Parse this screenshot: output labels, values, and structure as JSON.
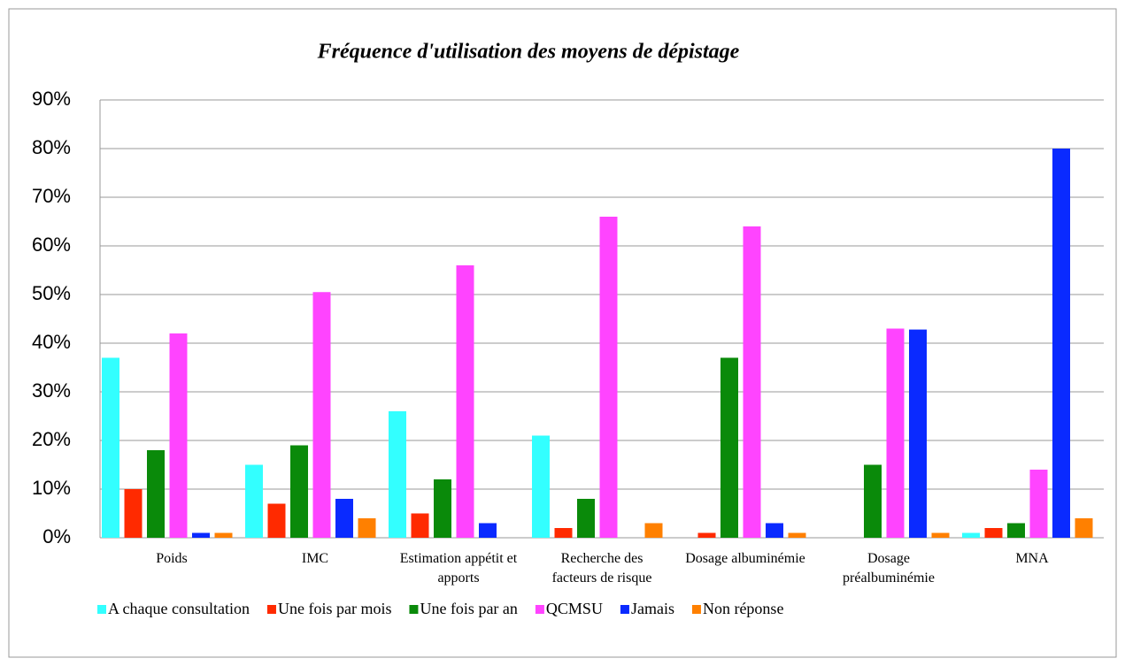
{
  "chart_data": {
    "type": "bar",
    "title": "Fréquence d'utilisation des moyens de dépistage",
    "categories": [
      "Poids",
      "IMC",
      "Estimation appétit et apports",
      "Recherche des facteurs de risque",
      "Dosage albuminémie",
      "Dosage préalbuminémie",
      "MNA"
    ],
    "series": [
      {
        "name": "A chaque consultation",
        "color": "#33ffff",
        "values": [
          37,
          15,
          26,
          21,
          0,
          0,
          1
        ]
      },
      {
        "name": "Une fois par mois",
        "color": "#ff2a00",
        "values": [
          10,
          7,
          5,
          2,
          1,
          0,
          2
        ]
      },
      {
        "name": "Une fois par an",
        "color": "#0a8a0a",
        "values": [
          18,
          19,
          12,
          8,
          37,
          15,
          3
        ]
      },
      {
        "name": "QCMSU",
        "color": "#ff44ff",
        "values": [
          42,
          50.5,
          56,
          66,
          64,
          43,
          14
        ]
      },
      {
        "name": "Jamais",
        "color": "#0a2aff",
        "values": [
          1,
          8,
          3,
          0,
          3,
          42.8,
          80
        ]
      },
      {
        "name": "Non réponse",
        "color": "#ff8000",
        "values": [
          1,
          4,
          0,
          3,
          1,
          1,
          4
        ]
      }
    ],
    "ylim": [
      0,
      90
    ],
    "yticks": [
      {
        "value": 0,
        "label": "0%"
      },
      {
        "value": 10,
        "label": "10%"
      },
      {
        "value": 20,
        "label": "20%"
      },
      {
        "value": 30,
        "label": "30%"
      },
      {
        "value": 40,
        "label": "40%"
      },
      {
        "value": 50,
        "label": "50%"
      },
      {
        "value": 60,
        "label": "60%"
      },
      {
        "value": 70,
        "label": "70%"
      },
      {
        "value": 80,
        "label": "80%"
      },
      {
        "value": 90,
        "label": "90%"
      }
    ],
    "grid": true,
    "legend": "bottom"
  }
}
